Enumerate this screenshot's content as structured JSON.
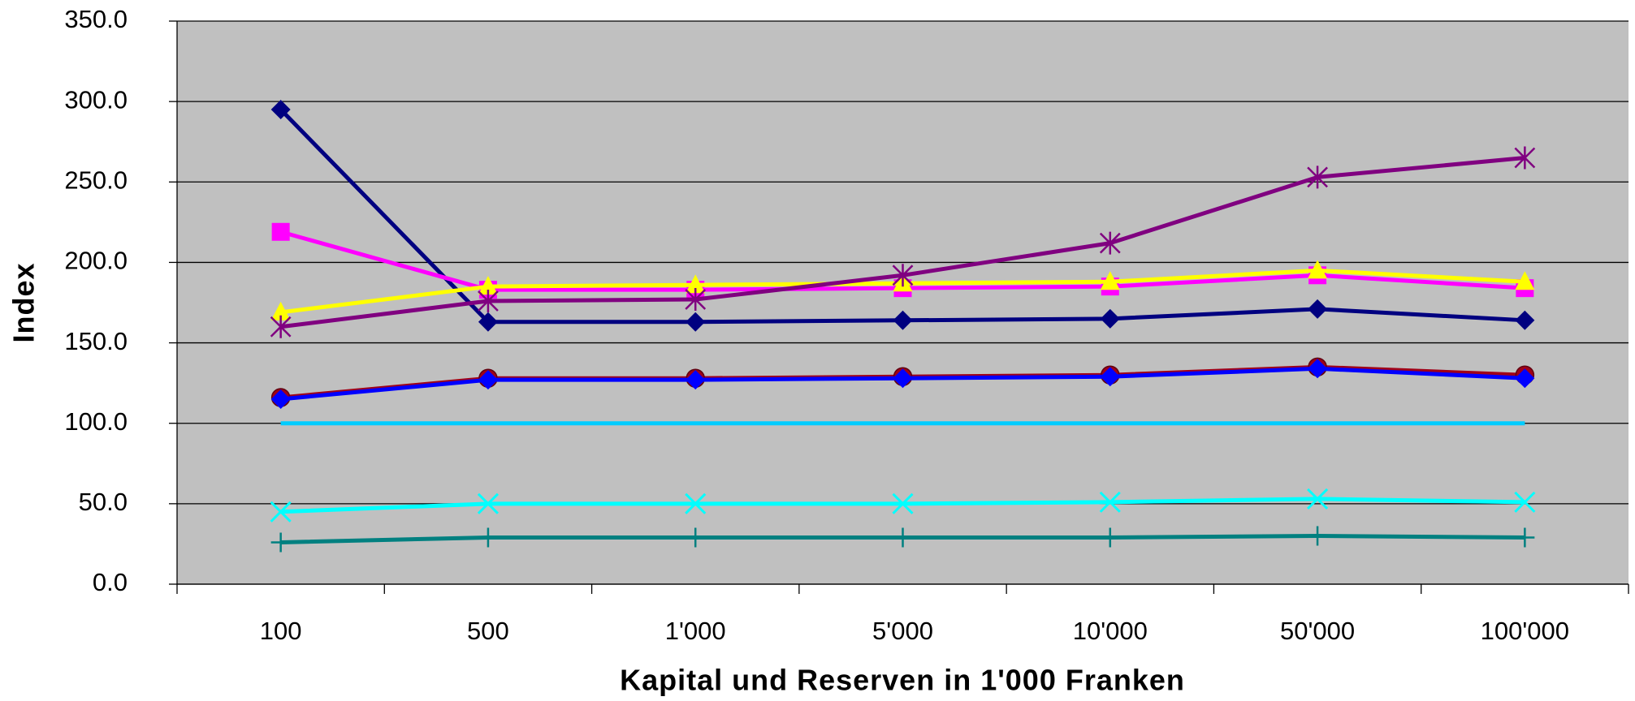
{
  "chart_data": {
    "type": "line",
    "x_label": "Kapital und Reserven in 1'000 Franken",
    "y_label": "Index",
    "categories": [
      "100",
      "500",
      "1'000",
      "5'000",
      "10'000",
      "50'000",
      "100'000"
    ],
    "ylim": [
      0,
      350
    ],
    "yticks": [
      {
        "value": 0,
        "label": "0.0"
      },
      {
        "value": 50,
        "label": "50.0"
      },
      {
        "value": 100,
        "label": "100.0"
      },
      {
        "value": 150,
        "label": "150.0"
      },
      {
        "value": 200,
        "label": "200.0"
      },
      {
        "value": 250,
        "label": "250.0"
      },
      {
        "value": 300,
        "label": "300.0"
      },
      {
        "value": 350,
        "label": "350.0"
      }
    ],
    "grid": true,
    "series": [
      {
        "color": "#000080",
        "marker": "diamond",
        "values": [
          295,
          163,
          163,
          164,
          165,
          171,
          164
        ]
      },
      {
        "color": "#ff00ff",
        "marker": "square",
        "values": [
          219,
          183,
          183,
          184,
          185,
          192,
          184
        ]
      },
      {
        "color": "#ffff00",
        "marker": "triangle",
        "values": [
          169,
          185,
          186,
          187,
          188,
          195,
          188
        ]
      },
      {
        "color": "#800080",
        "marker": "asterisk",
        "values": [
          160,
          176,
          177,
          192,
          212,
          253,
          265
        ]
      },
      {
        "color": "#a00018",
        "marker": "circle",
        "values": [
          116,
          128,
          128,
          129,
          130,
          135,
          130
        ]
      },
      {
        "color": "#0000ff",
        "marker": "diamond",
        "values": [
          115,
          127,
          127,
          128,
          129,
          134,
          128
        ]
      },
      {
        "color": "#00ccff",
        "marker": "none",
        "values": [
          100,
          100,
          100,
          100,
          100,
          100,
          100
        ]
      },
      {
        "color": "#00ffff",
        "marker": "x",
        "values": [
          45,
          50,
          50,
          50,
          51,
          53,
          51
        ]
      },
      {
        "color": "#008080",
        "marker": "plus",
        "values": [
          26,
          29,
          29,
          29,
          29,
          30,
          29
        ]
      }
    ]
  }
}
